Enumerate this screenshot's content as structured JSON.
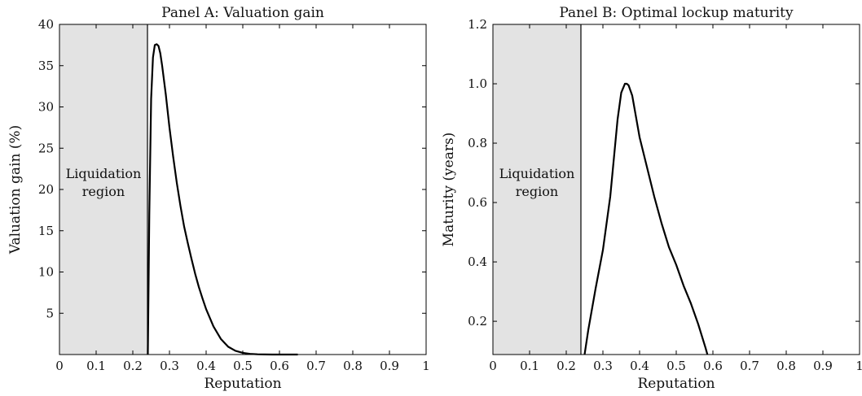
{
  "chart_data": [
    {
      "type": "line",
      "title": "Panel A: Valuation gain",
      "xlabel": "Reputation",
      "ylabel": "Valuation gain (%)",
      "xlim": [
        0,
        1
      ],
      "ylim": [
        0,
        40
      ],
      "xticks": [
        0,
        0.1,
        0.2,
        0.3,
        0.4,
        0.5,
        0.6,
        0.7,
        0.8,
        0.9,
        1
      ],
      "xtick_labels": [
        "0",
        "0.1",
        "0.2",
        "0.3",
        "0.4",
        "0.5",
        "0.6",
        "0.7",
        "0.8",
        "0.9",
        "1"
      ],
      "yticks": [
        5,
        10,
        15,
        20,
        25,
        30,
        35,
        40
      ],
      "ytick_labels": [
        "5",
        "10",
        "15",
        "20",
        "25",
        "30",
        "35",
        "40"
      ],
      "grid": false,
      "shaded_region": {
        "x": [
          0,
          0.24
        ],
        "label_lines": [
          "Liquidation",
          "region"
        ],
        "color": "#e3e3e3"
      },
      "series": [
        {
          "color": "#000000",
          "x": [
            0.241,
            0.245,
            0.25,
            0.255,
            0.26,
            0.265,
            0.27,
            0.275,
            0.28,
            0.29,
            0.3,
            0.31,
            0.32,
            0.33,
            0.34,
            0.35,
            0.36,
            0.37,
            0.38,
            0.39,
            0.4,
            0.42,
            0.44,
            0.46,
            0.48,
            0.5,
            0.52,
            0.54,
            0.56,
            0.58,
            0.6,
            0.62,
            0.65
          ],
          "y": [
            0,
            17,
            31,
            36,
            37.5,
            37.6,
            37.4,
            36.5,
            35,
            31.5,
            27.5,
            24,
            20.8,
            18,
            15.5,
            13.5,
            11.6,
            9.8,
            8.2,
            6.8,
            5.5,
            3.4,
            1.9,
            0.95,
            0.45,
            0.2,
            0.08,
            0.03,
            0.01,
            0,
            0,
            0,
            0
          ]
        }
      ]
    },
    {
      "type": "line",
      "title": "Panel B: Optimal lockup maturity",
      "xlabel": "Reputation",
      "ylabel": "Maturity (years)",
      "xlim": [
        0,
        1
      ],
      "ylim": [
        0.088,
        1.2
      ],
      "xticks": [
        0,
        0.1,
        0.2,
        0.3,
        0.4,
        0.5,
        0.6,
        0.7,
        0.8,
        0.9,
        1
      ],
      "xtick_labels": [
        "0",
        "0.1",
        "0.2",
        "0.3",
        "0.4",
        "0.5",
        "0.6",
        "0.7",
        "0.8",
        "0.9",
        "1"
      ],
      "yticks": [
        0.2,
        0.4,
        0.6,
        0.8,
        1.0,
        1.2
      ],
      "ytick_labels": [
        "0.2",
        "0.4",
        "0.6",
        "0.8",
        "1.0",
        "1.2"
      ],
      "grid": false,
      "shaded_region": {
        "x": [
          0,
          0.24
        ],
        "label_lines": [
          "Liquidation",
          "region"
        ],
        "color": "#e3e3e3"
      },
      "series": [
        {
          "color": "#000000",
          "x": [
            0.25,
            0.26,
            0.28,
            0.3,
            0.32,
            0.34,
            0.35,
            0.36,
            0.365,
            0.37,
            0.38,
            0.39,
            0.4,
            0.42,
            0.44,
            0.46,
            0.48,
            0.5,
            0.52,
            0.54,
            0.56,
            0.58,
            0.585
          ],
          "y": [
            0.088,
            0.17,
            0.31,
            0.44,
            0.62,
            0.88,
            0.97,
            1.0,
            1.0,
            0.995,
            0.96,
            0.89,
            0.82,
            0.72,
            0.62,
            0.53,
            0.45,
            0.39,
            0.32,
            0.26,
            0.19,
            0.11,
            0.088
          ]
        }
      ]
    }
  ]
}
